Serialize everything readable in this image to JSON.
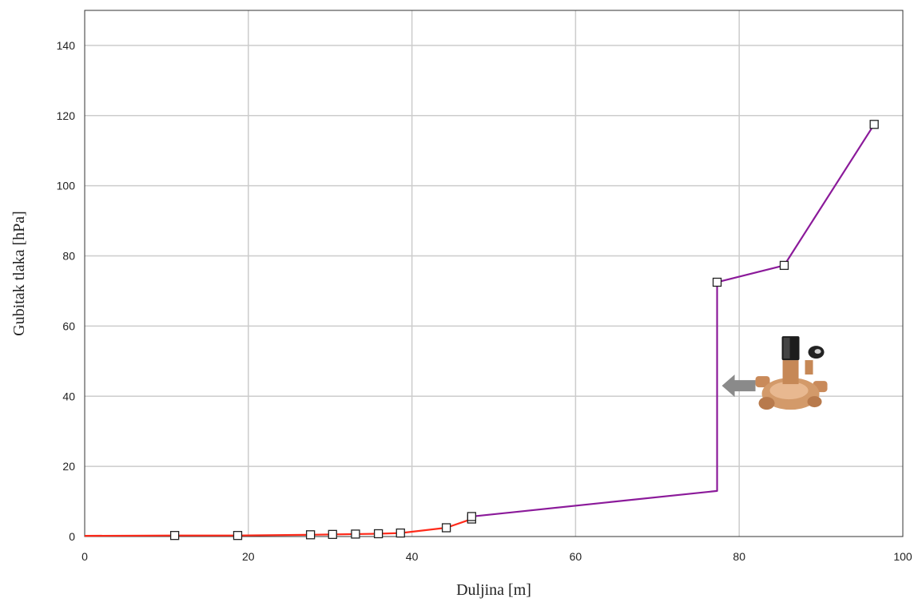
{
  "chart_data": {
    "type": "line",
    "title": "",
    "xlabel": "Duljina [m]",
    "ylabel": "Gubitak tlaka [hPa]",
    "xlim": [
      0,
      100
    ],
    "ylim": [
      0,
      150
    ],
    "xticks": [
      0,
      20,
      40,
      60,
      80,
      100
    ],
    "yticks": [
      0,
      20,
      40,
      60,
      80,
      100,
      120,
      140
    ],
    "grid": true,
    "colors": {
      "red_segment": "#ff2a1a",
      "purple_segment": "#8b1a9a",
      "grid": "#cccccc",
      "arrow": "#8a8a8a"
    },
    "series": [
      {
        "color": "#ff2a1a",
        "x": [
          0,
          11,
          18.7,
          27.6,
          30.3,
          33.1,
          35.9,
          38.6,
          44.2,
          47.3
        ],
        "y": [
          0.2,
          0.3,
          0.3,
          0.5,
          0.6,
          0.7,
          0.8,
          1.0,
          2.5,
          5.0
        ]
      },
      {
        "color": "#8b1a9a",
        "x": [
          47.3,
          77.3,
          77.3,
          85.5,
          96.5
        ],
        "y": [
          5.7,
          13.0,
          72.5,
          77.3,
          117.5
        ]
      }
    ],
    "markers": [
      {
        "x": 11,
        "y": 0.3
      },
      {
        "x": 18.7,
        "y": 0.3
      },
      {
        "x": 27.6,
        "y": 0.5
      },
      {
        "x": 30.3,
        "y": 0.6
      },
      {
        "x": 33.1,
        "y": 0.7
      },
      {
        "x": 35.9,
        "y": 0.8
      },
      {
        "x": 38.6,
        "y": 1.0
      },
      {
        "x": 44.2,
        "y": 2.5
      },
      {
        "x": 47.3,
        "y": 5.0
      },
      {
        "x": 47.3,
        "y": 5.7
      },
      {
        "x": 77.3,
        "y": 72.5
      },
      {
        "x": 85.5,
        "y": 77.3
      },
      {
        "x": 96.5,
        "y": 117.5
      }
    ],
    "annotation": {
      "icon": "valve-icon",
      "arrow_icon": "arrow-left-icon",
      "points_to_x": 77.3,
      "points_to_y": 43
    }
  }
}
